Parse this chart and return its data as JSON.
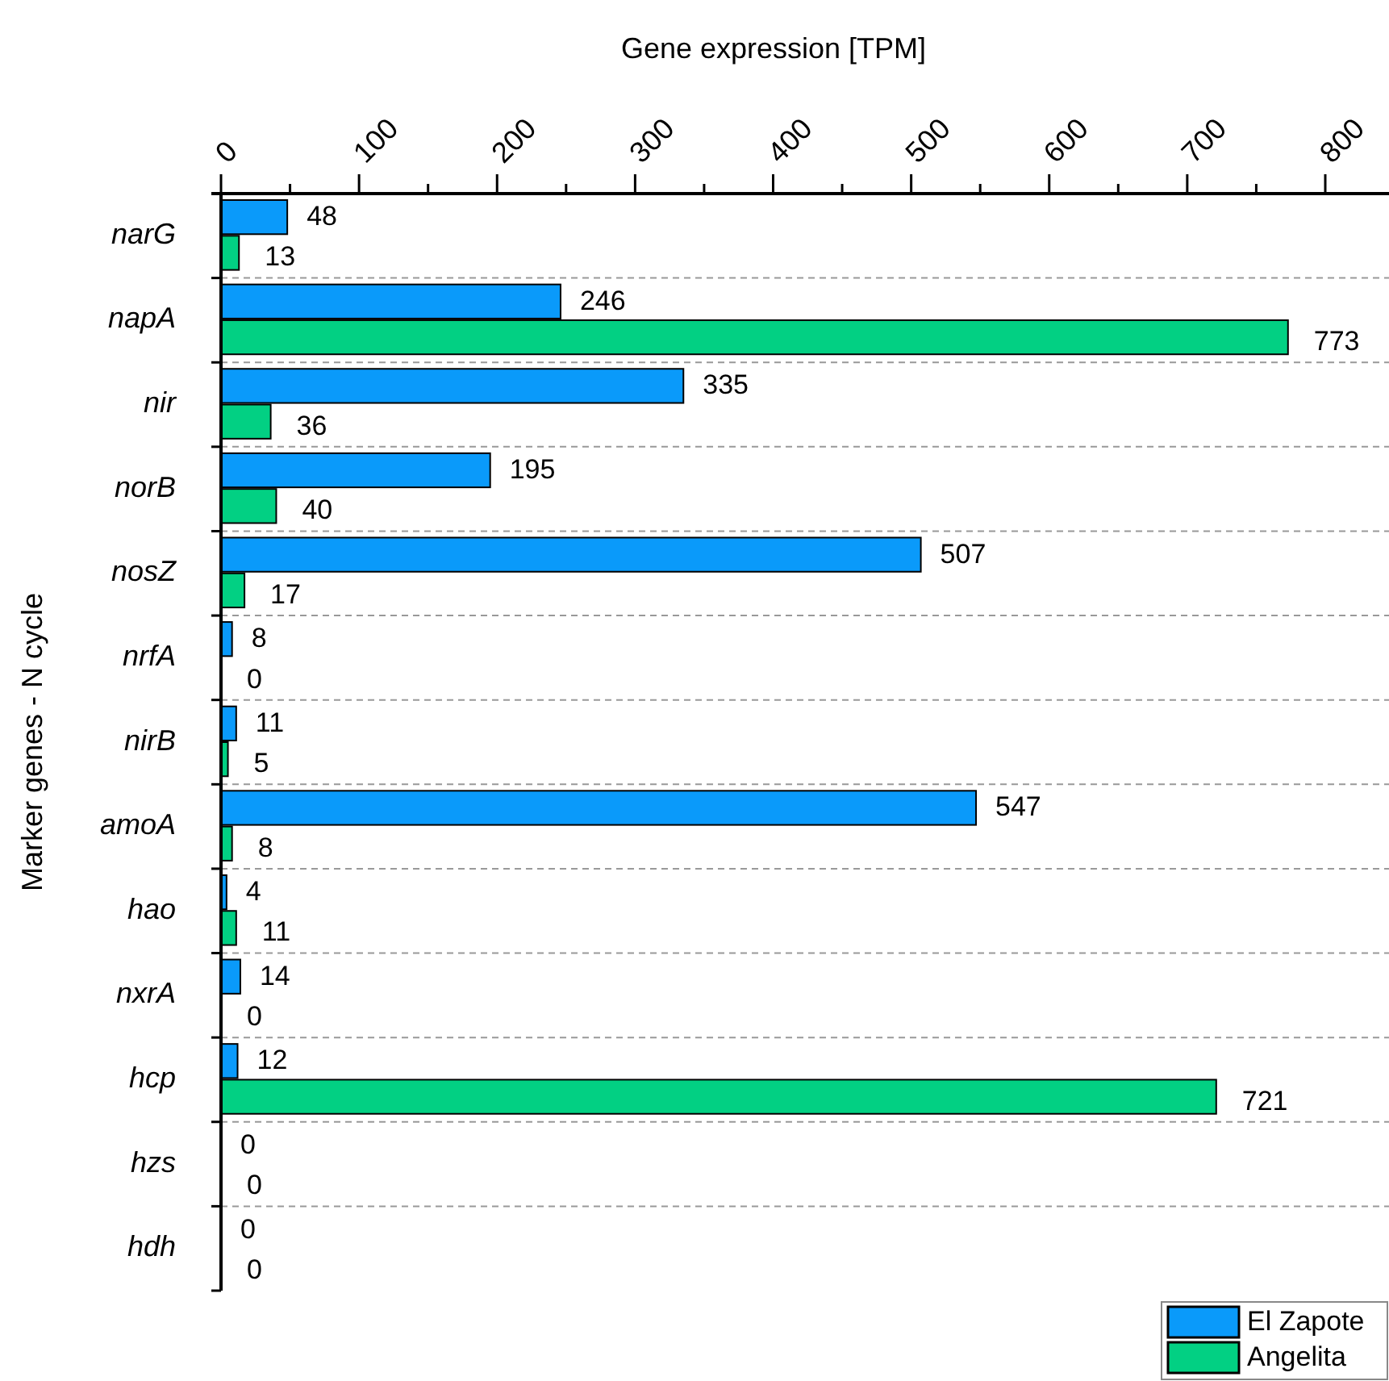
{
  "chart_data": {
    "type": "bar",
    "orientation": "horizontal",
    "xlabel": "Gene expression [TPM]",
    "ylabel": "Marker genes - N cycle",
    "categories": [
      "narG",
      "napA",
      "nir",
      "norB",
      "nosZ",
      "nrfA",
      "nirB",
      "amoA",
      "hao",
      "nxrA",
      "hcp",
      "hzs",
      "hdh"
    ],
    "series": [
      {
        "name": "El Zapote",
        "color": "#0a9afa",
        "values": [
          48,
          246,
          335,
          195,
          507,
          8,
          11,
          547,
          4,
          14,
          12,
          0,
          0
        ]
      },
      {
        "name": "Angelita",
        "color": "#02d083",
        "values": [
          13,
          773,
          36,
          40,
          17,
          0,
          5,
          8,
          11,
          0,
          721,
          0,
          0
        ]
      }
    ],
    "xlim": [
      0,
      845
    ],
    "xticks": [
      0,
      {
        "value": 50,
        "label": null
      },
      100,
      {
        "value": 150,
        "label": null
      },
      200,
      {
        "value": 250,
        "label": null
      },
      300,
      {
        "value": 350,
        "label": null
      },
      400,
      {
        "value": 450,
        "label": null
      },
      500,
      {
        "value": 550,
        "label": null
      },
      600,
      {
        "value": 650,
        "label": null
      },
      700,
      {
        "value": 750,
        "label": null
      },
      800
    ],
    "grid": "y",
    "data_labels": true,
    "legend": "bottom right"
  }
}
